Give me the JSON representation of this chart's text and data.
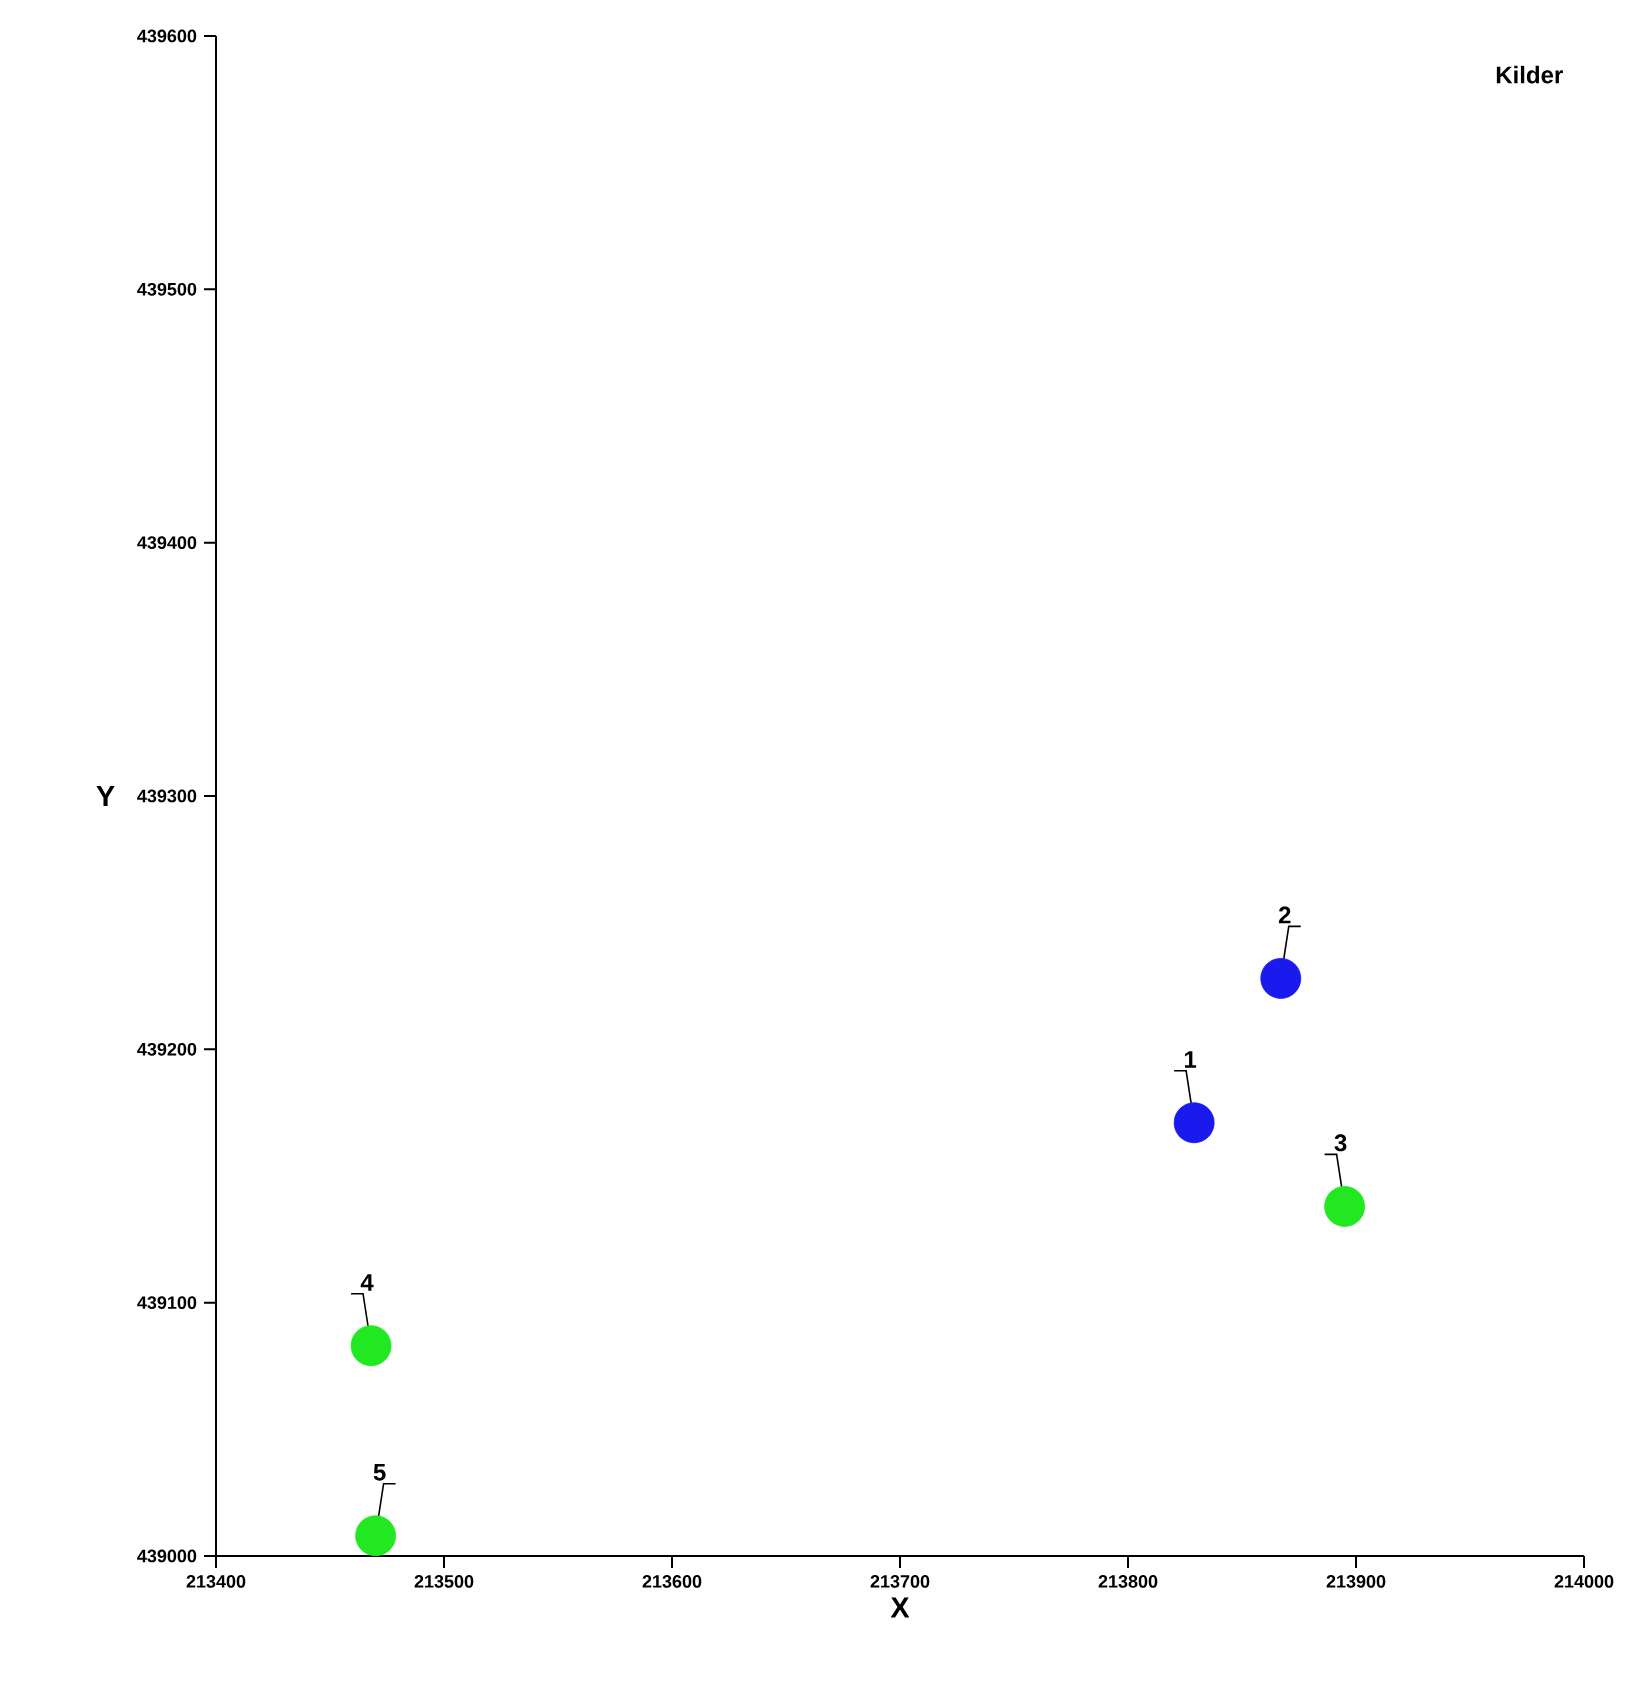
{
  "chart_data": {
    "type": "scatter",
    "title": "Kilder",
    "xlabel": "X",
    "ylabel": "Y",
    "series": [
      {
        "color": "#1a1aee",
        "x": [
          213829,
          213867
        ],
        "values": [
          439171,
          439228
        ]
      },
      {
        "color": "#22e822",
        "x": [
          213895,
          213468,
          213470
        ],
        "values": [
          439138,
          439083,
          439008
        ]
      }
    ],
    "grid": false,
    "xlim": [
      213400,
      214000
    ],
    "xticks": [
      213400,
      213500,
      213600,
      213700,
      213800,
      213900,
      214000
    ],
    "ylim": [
      439000,
      439600
    ],
    "yticks": [
      439000,
      439100,
      439200,
      439300,
      439400,
      439500,
      439600
    ],
    "annotations": [
      {
        "text": "1",
        "x": 213829,
        "y": 439171
      },
      {
        "text": "2",
        "x": 213867,
        "y": 439228
      },
      {
        "text": "3",
        "x": 213895,
        "y": 439138
      },
      {
        "text": "4",
        "x": 213468,
        "y": 439083
      },
      {
        "text": "5",
        "x": 213470,
        "y": 439008
      }
    ]
  }
}
